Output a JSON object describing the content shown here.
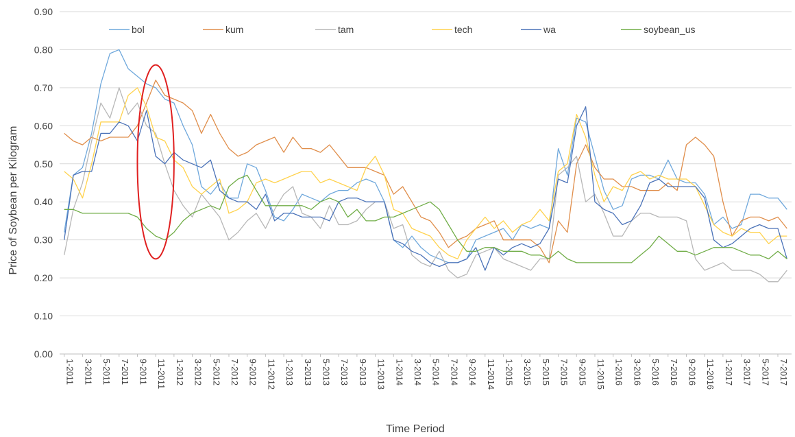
{
  "chart_data": {
    "type": "line",
    "title": "",
    "xlabel": "Time Period",
    "ylabel": "Price of Soybean per Kilogram",
    "ylim": [
      0,
      0.9
    ],
    "yticks": [
      "0.00",
      "0.10",
      "0.20",
      "0.30",
      "0.40",
      "0.50",
      "0.60",
      "0.70",
      "0.80",
      "0.90"
    ],
    "grid": "horizontal",
    "legend_position": "top",
    "x": [
      "1-2011",
      "2-2011",
      "3-2011",
      "4-2011",
      "5-2011",
      "6-2011",
      "7-2011",
      "8-2011",
      "9-2011",
      "10-2011",
      "11-2011",
      "12-2011",
      "1-2012",
      "2-2012",
      "3-2012",
      "4-2012",
      "5-2012",
      "6-2012",
      "7-2012",
      "8-2012",
      "9-2012",
      "10-2012",
      "11-2012",
      "12-2012",
      "1-2013",
      "2-2013",
      "3-2013",
      "4-2013",
      "5-2013",
      "6-2013",
      "7-2013",
      "8-2013",
      "9-2013",
      "10-2013",
      "11-2013",
      "12-2013",
      "1-2014",
      "2-2014",
      "3-2014",
      "4-2014",
      "5-2014",
      "6-2014",
      "7-2014",
      "8-2014",
      "9-2014",
      "10-2014",
      "11-2014",
      "12-2014",
      "1-2015",
      "2-2015",
      "3-2015",
      "4-2015",
      "5-2015",
      "6-2015",
      "7-2015",
      "8-2015",
      "9-2015",
      "10-2015",
      "11-2015",
      "12-2015",
      "1-2016",
      "2-2016",
      "3-2016",
      "4-2016",
      "5-2016",
      "6-2016",
      "7-2016",
      "8-2016",
      "9-2016",
      "10-2016",
      "11-2016",
      "12-2016",
      "1-2017",
      "2-2017",
      "3-2017",
      "4-2017",
      "5-2017",
      "6-2017",
      "7-2017",
      "8-2017"
    ],
    "x_tick_labels": [
      "1-2011",
      "3-2011",
      "5-2011",
      "7-2011",
      "9-2011",
      "11-2011",
      "1-2012",
      "3-2012",
      "5-2012",
      "7-2012",
      "9-2012",
      "11-2012",
      "1-2013",
      "3-2013",
      "5-2013",
      "7-2013",
      "9-2013",
      "11-2013",
      "1-2014",
      "3-2014",
      "5-2014",
      "7-2014",
      "9-2014",
      "11-2014",
      "1-2015",
      "3-2015",
      "5-2015",
      "7-2015",
      "9-2015",
      "11-2015",
      "1-2016",
      "3-2016",
      "5-2016",
      "7-2016",
      "9-2016",
      "11-2016",
      "1-2017",
      "3-2017",
      "5-2017",
      "7-2017"
    ],
    "series": [
      {
        "name": "bol",
        "color": "#6FA8DC",
        "values": [
          0.32,
          0.47,
          0.49,
          0.58,
          0.71,
          0.79,
          0.8,
          0.75,
          0.73,
          0.71,
          0.7,
          0.67,
          0.66,
          0.6,
          0.55,
          0.44,
          0.42,
          0.45,
          0.41,
          0.41,
          0.5,
          0.49,
          0.43,
          0.36,
          0.35,
          0.38,
          0.42,
          0.41,
          0.4,
          0.42,
          0.43,
          0.43,
          0.45,
          0.46,
          0.45,
          0.4,
          0.3,
          0.28,
          0.31,
          0.28,
          0.26,
          0.25,
          0.24,
          0.24,
          0.25,
          0.3,
          0.31,
          0.32,
          0.33,
          0.3,
          0.34,
          0.33,
          0.34,
          0.33,
          0.54,
          0.47,
          0.62,
          0.61,
          0.52,
          0.43,
          0.38,
          0.39,
          0.46,
          0.47,
          0.47,
          0.46,
          0.51,
          0.46,
          0.45,
          0.45,
          0.42,
          0.34,
          0.36,
          0.33,
          0.34,
          0.42,
          0.42,
          0.41,
          0.41,
          0.38
        ]
      },
      {
        "name": "kum",
        "color": "#E08E4B",
        "values": [
          0.58,
          0.56,
          0.55,
          0.57,
          0.56,
          0.57,
          0.57,
          0.57,
          0.6,
          0.66,
          0.72,
          0.68,
          0.67,
          0.66,
          0.64,
          0.58,
          0.63,
          0.58,
          0.54,
          0.52,
          0.53,
          0.55,
          0.56,
          0.57,
          0.53,
          0.57,
          0.54,
          0.54,
          0.53,
          0.55,
          0.52,
          0.49,
          0.49,
          0.49,
          0.48,
          0.47,
          0.42,
          0.44,
          0.4,
          0.36,
          0.35,
          0.32,
          0.28,
          0.3,
          0.31,
          0.33,
          0.34,
          0.35,
          0.3,
          0.3,
          0.3,
          0.3,
          0.28,
          0.24,
          0.35,
          0.32,
          0.5,
          0.55,
          0.49,
          0.46,
          0.46,
          0.44,
          0.44,
          0.43,
          0.43,
          0.43,
          0.45,
          0.43,
          0.55,
          0.57,
          0.55,
          0.52,
          0.4,
          0.31,
          0.35,
          0.36,
          0.36,
          0.35,
          0.36,
          0.33
        ]
      },
      {
        "name": "tam",
        "color": "#B7B7B7",
        "values": [
          0.26,
          0.38,
          0.45,
          0.56,
          0.66,
          0.62,
          0.7,
          0.63,
          0.66,
          0.6,
          0.58,
          0.5,
          0.43,
          0.39,
          0.36,
          0.42,
          0.39,
          0.36,
          0.3,
          0.32,
          0.35,
          0.37,
          0.33,
          0.38,
          0.42,
          0.44,
          0.37,
          0.36,
          0.33,
          0.39,
          0.34,
          0.34,
          0.35,
          0.38,
          0.4,
          0.4,
          0.33,
          0.34,
          0.26,
          0.24,
          0.23,
          0.27,
          0.22,
          0.2,
          0.21,
          0.26,
          0.27,
          0.28,
          0.25,
          0.24,
          0.23,
          0.22,
          0.25,
          0.25,
          0.47,
          0.49,
          0.52,
          0.4,
          0.42,
          0.37,
          0.31,
          0.31,
          0.35,
          0.37,
          0.37,
          0.36,
          0.36,
          0.36,
          0.35,
          0.25,
          0.22,
          0.23,
          0.24,
          0.22,
          0.22,
          0.22,
          0.21,
          0.19,
          0.19,
          0.22
        ]
      },
      {
        "name": "tech",
        "color": "#FFD24D",
        "values": [
          0.48,
          0.46,
          0.41,
          0.5,
          0.61,
          0.61,
          0.61,
          0.68,
          0.7,
          0.65,
          0.57,
          0.56,
          0.51,
          0.49,
          0.44,
          0.42,
          0.44,
          0.46,
          0.37,
          0.38,
          0.4,
          0.45,
          0.46,
          0.45,
          0.46,
          0.47,
          0.48,
          0.48,
          0.45,
          0.46,
          0.45,
          0.44,
          0.43,
          0.49,
          0.52,
          0.47,
          0.38,
          0.37,
          0.33,
          0.32,
          0.31,
          0.28,
          0.26,
          0.25,
          0.3,
          0.33,
          0.36,
          0.33,
          0.35,
          0.32,
          0.34,
          0.35,
          0.38,
          0.35,
          0.48,
          0.5,
          0.63,
          0.57,
          0.47,
          0.4,
          0.44,
          0.43,
          0.47,
          0.48,
          0.46,
          0.47,
          0.46,
          0.46,
          0.46,
          0.44,
          0.39,
          0.34,
          0.32,
          0.31,
          0.33,
          0.32,
          0.32,
          0.29,
          0.31,
          0.31
        ]
      },
      {
        "name": "wa",
        "color": "#4A72B8",
        "values": [
          0.3,
          0.47,
          0.48,
          0.48,
          0.58,
          0.58,
          0.61,
          0.6,
          0.56,
          0.64,
          0.52,
          0.5,
          0.53,
          0.51,
          0.5,
          0.49,
          0.51,
          0.43,
          0.41,
          0.4,
          0.4,
          0.38,
          0.42,
          0.35,
          0.37,
          0.37,
          0.36,
          0.36,
          0.36,
          0.35,
          0.4,
          0.41,
          0.41,
          0.4,
          0.4,
          0.4,
          0.3,
          0.29,
          0.27,
          0.26,
          0.24,
          0.23,
          0.24,
          0.24,
          0.25,
          0.28,
          0.22,
          0.28,
          0.26,
          0.28,
          0.29,
          0.28,
          0.29,
          0.33,
          0.46,
          0.45,
          0.6,
          0.65,
          0.4,
          0.38,
          0.37,
          0.34,
          0.35,
          0.39,
          0.45,
          0.46,
          0.44,
          0.44,
          0.44,
          0.44,
          0.41,
          0.3,
          0.28,
          0.29,
          0.31,
          0.33,
          0.34,
          0.33,
          0.33,
          0.25
        ]
      },
      {
        "name": "soybean_us",
        "color": "#70AD47",
        "values": [
          0.38,
          0.38,
          0.37,
          0.37,
          0.37,
          0.37,
          0.37,
          0.37,
          0.36,
          0.33,
          0.31,
          0.3,
          0.32,
          0.35,
          0.37,
          0.38,
          0.39,
          0.38,
          0.44,
          0.46,
          0.47,
          0.43,
          0.39,
          0.39,
          0.39,
          0.39,
          0.39,
          0.38,
          0.4,
          0.41,
          0.4,
          0.36,
          0.38,
          0.35,
          0.35,
          0.36,
          0.36,
          0.37,
          0.38,
          0.39,
          0.4,
          0.38,
          0.34,
          0.3,
          0.27,
          0.27,
          0.28,
          0.28,
          0.27,
          0.27,
          0.27,
          0.26,
          0.26,
          0.25,
          0.27,
          0.25,
          0.24,
          0.24,
          0.24,
          0.24,
          0.24,
          0.24,
          0.24,
          0.26,
          0.28,
          0.31,
          0.29,
          0.27,
          0.27,
          0.26,
          0.27,
          0.28,
          0.28,
          0.28,
          0.27,
          0.26,
          0.26,
          0.25,
          0.27,
          0.25
        ]
      }
    ],
    "annotations": [
      {
        "type": "ellipse",
        "color": "#E02020",
        "x_range": [
          "9-2011",
          "1-2012"
        ],
        "y_range": [
          0.25,
          0.76
        ]
      }
    ]
  }
}
